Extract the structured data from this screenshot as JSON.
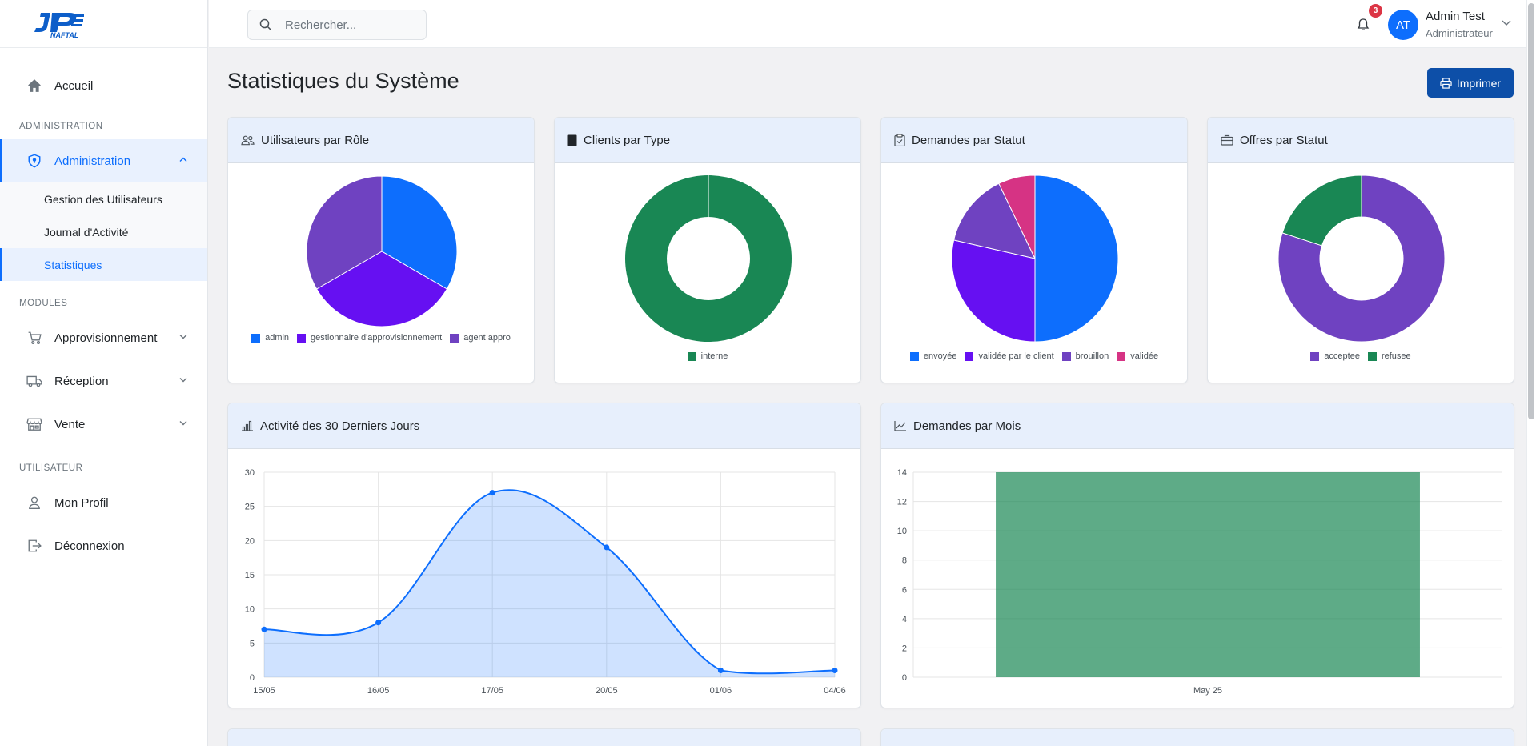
{
  "brand": {
    "logo_text": "JP NAFTAL"
  },
  "sidebar": {
    "home": "Accueil",
    "section_admin": "ADMINISTRATION",
    "admin": "Administration",
    "admin_sub": [
      "Gestion des Utilisateurs",
      "Journal d'Activité",
      "Statistiques"
    ],
    "section_modules": "MODULES",
    "modules": [
      "Approvisionnement",
      "Réception",
      "Vente"
    ],
    "section_user": "UTILISATEUR",
    "profile": "Mon Profil",
    "logout": "Déconnexion"
  },
  "topbar": {
    "search_placeholder": "Rechercher...",
    "notif_count": "3",
    "avatar_initials": "AT",
    "user_name": "Admin Test",
    "user_role": "Administrateur"
  },
  "page": {
    "title": "Statistiques du Système",
    "print_label": "Imprimer"
  },
  "colors": {
    "blue": "#0d6efd",
    "violet": "#6610f2",
    "purple": "#6f42c1",
    "green": "#198754",
    "pink": "#d63384",
    "header_bg": "#e7effc"
  },
  "cards": {
    "users_by_role": "Utilisateurs par Rôle",
    "clients_by_type": "Clients par Type",
    "requests_by_status": "Demandes par Statut",
    "offers_by_status": "Offres par Statut",
    "activity_30_days": "Activité des 30 Derniers Jours",
    "requests_by_month": "Demandes par Mois"
  },
  "chart_data": [
    {
      "type": "pie",
      "title": "Utilisateurs par Rôle",
      "categories": [
        "admin",
        "gestionnaire d'approvisionnement",
        "agent appro"
      ],
      "values": [
        1,
        1,
        1
      ],
      "colors": [
        "#0d6efd",
        "#6610f2",
        "#6f42c1"
      ]
    },
    {
      "type": "pie",
      "subtype": "doughnut",
      "title": "Clients par Type",
      "categories": [
        "interne"
      ],
      "values": [
        1
      ],
      "colors": [
        "#198754"
      ]
    },
    {
      "type": "pie",
      "title": "Demandes par Statut",
      "categories": [
        "envoyée",
        "validée par le client",
        "brouillon",
        "validée"
      ],
      "values": [
        7,
        4,
        2,
        1
      ],
      "colors": [
        "#0d6efd",
        "#6610f2",
        "#6f42c1",
        "#d63384"
      ]
    },
    {
      "type": "pie",
      "subtype": "doughnut",
      "title": "Offres par Statut",
      "categories": [
        "acceptee",
        "refusee"
      ],
      "values": [
        4,
        1
      ],
      "colors": [
        "#6f42c1",
        "#198754"
      ]
    },
    {
      "type": "area",
      "title": "Activité des 30 Derniers Jours",
      "x": [
        "15/05",
        "16/05",
        "17/05",
        "20/05",
        "01/06",
        "04/06"
      ],
      "values": [
        7,
        8,
        27,
        19,
        1,
        1
      ],
      "ylim": [
        0,
        30
      ],
      "yticks": [
        0,
        5,
        10,
        15,
        20,
        25,
        30
      ],
      "color": "#0d6efd",
      "grid": true
    },
    {
      "type": "bar",
      "title": "Demandes par Mois",
      "categories": [
        "May 25"
      ],
      "values": [
        14
      ],
      "ylim": [
        0,
        14
      ],
      "yticks": [
        0,
        2,
        4,
        6,
        8,
        10,
        12,
        14
      ],
      "color": "#198754",
      "grid": true
    }
  ]
}
